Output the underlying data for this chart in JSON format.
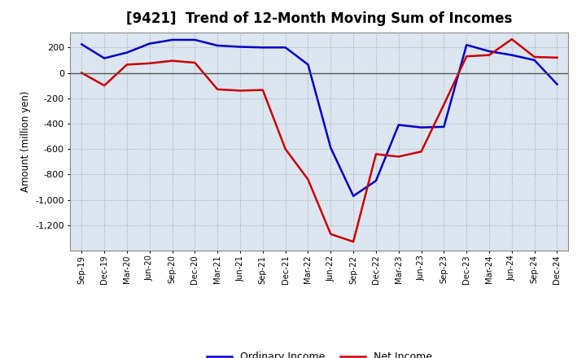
{
  "title": "[9421]  Trend of 12-Month Moving Sum of Incomes",
  "ylabel": "Amount (million yen)",
  "background_color": "#ffffff",
  "plot_background": "#dce6f0",
  "grid_color": "#aaaaaa",
  "labels": [
    "Sep-19",
    "Dec-19",
    "Mar-20",
    "Jun-20",
    "Sep-20",
    "Dec-20",
    "Mar-21",
    "Jun-21",
    "Sep-21",
    "Dec-21",
    "Mar-22",
    "Jun-22",
    "Sep-22",
    "Dec-22",
    "Mar-23",
    "Jun-23",
    "Sep-23",
    "Dec-23",
    "Mar-24",
    "Jun-24",
    "Sep-24",
    "Dec-24"
  ],
  "ordinary_income": [
    225,
    115,
    160,
    230,
    260,
    260,
    215,
    205,
    200,
    200,
    65,
    -590,
    -970,
    -850,
    -410,
    -430,
    -425,
    220,
    170,
    140,
    100,
    -90
  ],
  "net_income": [
    0,
    -100,
    65,
    75,
    95,
    80,
    -130,
    -140,
    -135,
    -600,
    -840,
    -1270,
    -1330,
    -640,
    -660,
    -620,
    -250,
    130,
    140,
    265,
    125,
    120
  ],
  "ordinary_color": "#0000cc",
  "net_color": "#cc0000",
  "line_width": 1.8,
  "ylim": [
    -1400,
    320
  ],
  "yticks": [
    200,
    0,
    -200,
    -400,
    -600,
    -800,
    -1000,
    -1200
  ],
  "title_fontsize": 12,
  "legend_ncol": 2,
  "figwidth": 7.2,
  "figheight": 4.4,
  "dpi": 100
}
